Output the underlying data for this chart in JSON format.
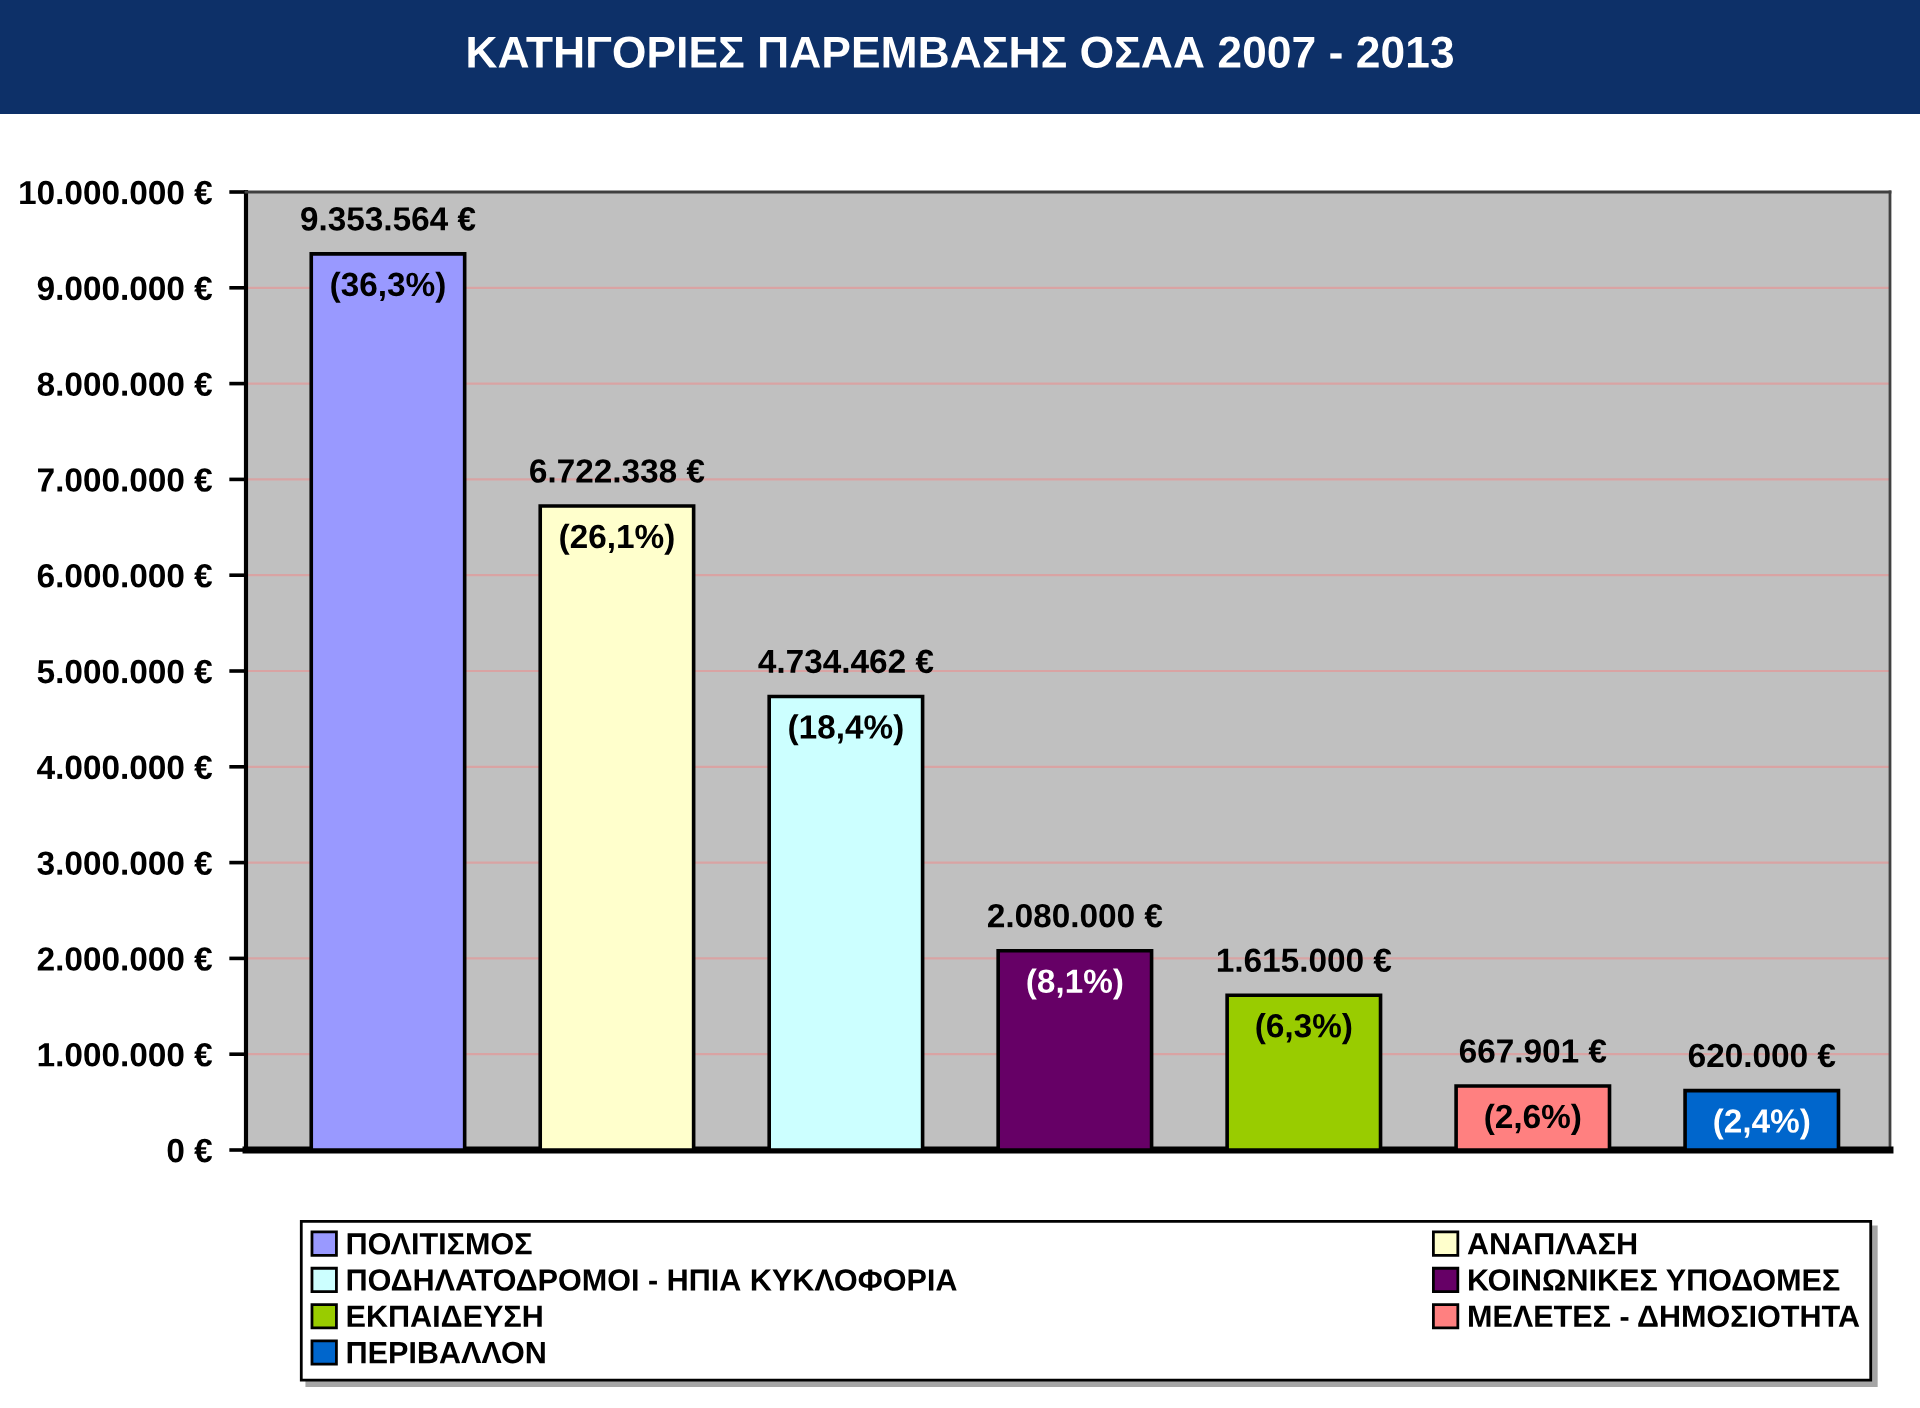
{
  "chart_data": {
    "type": "bar",
    "title": "ΚΑΤΗΓΟΡΙΕΣ ΠΑΡΕΜΒΑΣΗΣ ΟΣΑΑ 2007 - 2013",
    "categories": [
      null,
      null,
      null,
      null,
      null,
      null,
      null
    ],
    "series": [
      {
        "name": "ΠΟΛΙΤΙΣΜΟΣ",
        "color": "#9999ff",
        "values": [
          9353564,
          null,
          null,
          null,
          null,
          null,
          null
        ],
        "value_labels": [
          "9.353.564 €\n(36,3%)",
          null,
          null,
          null,
          null,
          null,
          null
        ]
      },
      {
        "name": "ΑΝΑΠΛΑΣΗ",
        "color": "#ffffcc",
        "values": [
          null,
          6722338,
          null,
          null,
          null,
          null,
          null
        ],
        "value_labels": [
          null,
          "6.722.338 €\n(26,1%)",
          null,
          null,
          null,
          null,
          null
        ]
      },
      {
        "name": "ΠΟΔΗΛΑΤΟΔΡΟΜΟΙ - ΗΠΙΑ ΚΥΚΛΟΦΟΡΙΑ",
        "color": "#ccffff",
        "values": [
          null,
          null,
          4734462,
          null,
          null,
          null,
          null
        ],
        "value_labels": [
          null,
          null,
          "4.734.462 €\n(18,4%)",
          null,
          null,
          null,
          null
        ]
      },
      {
        "name": "ΚΟΙΝΩΝΙΚΕΣ ΥΠΟΔΟΜΕΣ",
        "color": "#660066",
        "values": [
          null,
          null,
          null,
          2080000,
          null,
          null,
          null
        ],
        "value_labels": [
          null,
          null,
          null,
          "2.080.000 €\n(8,1%)",
          null,
          null,
          null
        ]
      },
      {
        "name": "ΕΚΠΑΙΔΕΥΣΗ",
        "color": "#99cc00",
        "values": [
          null,
          null,
          null,
          null,
          1615000,
          null,
          null
        ],
        "value_labels": [
          null,
          null,
          null,
          null,
          "1.615.000 €\n(6,3%)",
          null,
          null
        ]
      },
      {
        "name": "ΜΕΛΕΤΕΣ - ΔΗΜΟΣΙΟΤΗΤΑ",
        "color": "#ff8080",
        "values": [
          null,
          null,
          null,
          null,
          null,
          667901,
          null
        ],
        "value_labels": [
          null,
          null,
          null,
          null,
          null,
          "667.901 €\n(2,6%)",
          null
        ]
      },
      {
        "name": "ΠΕΡΙΒΑΛΛΟΝ",
        "color": "#0066cc",
        "values": [
          null,
          null,
          null,
          null,
          null,
          null,
          620000
        ],
        "value_labels": [
          null,
          null,
          null,
          null,
          null,
          null,
          "620.000 €\n(2,4%)"
        ]
      }
    ],
    "ylim": [
      0,
      10000000
    ],
    "yticks": [
      {
        "value": 0,
        "label": "0 €"
      },
      {
        "value": 1000000,
        "label": "1.000.000 €"
      },
      {
        "value": 2000000,
        "label": "2.000.000 €"
      },
      {
        "value": 3000000,
        "label": "3.000.000 €"
      },
      {
        "value": 4000000,
        "label": "4.000.000 €"
      },
      {
        "value": 5000000,
        "label": "5.000.000 €"
      },
      {
        "value": 6000000,
        "label": "6.000.000 €"
      },
      {
        "value": 7000000,
        "label": "7.000.000 €"
      },
      {
        "value": 8000000,
        "label": "8.000.000 €"
      },
      {
        "value": 9000000,
        "label": "9.000.000 €"
      },
      {
        "value": 10000000,
        "label": "10.000.000 €"
      }
    ],
    "grid": "y",
    "legend": "bottom",
    "tick_labels": "y"
  }
}
